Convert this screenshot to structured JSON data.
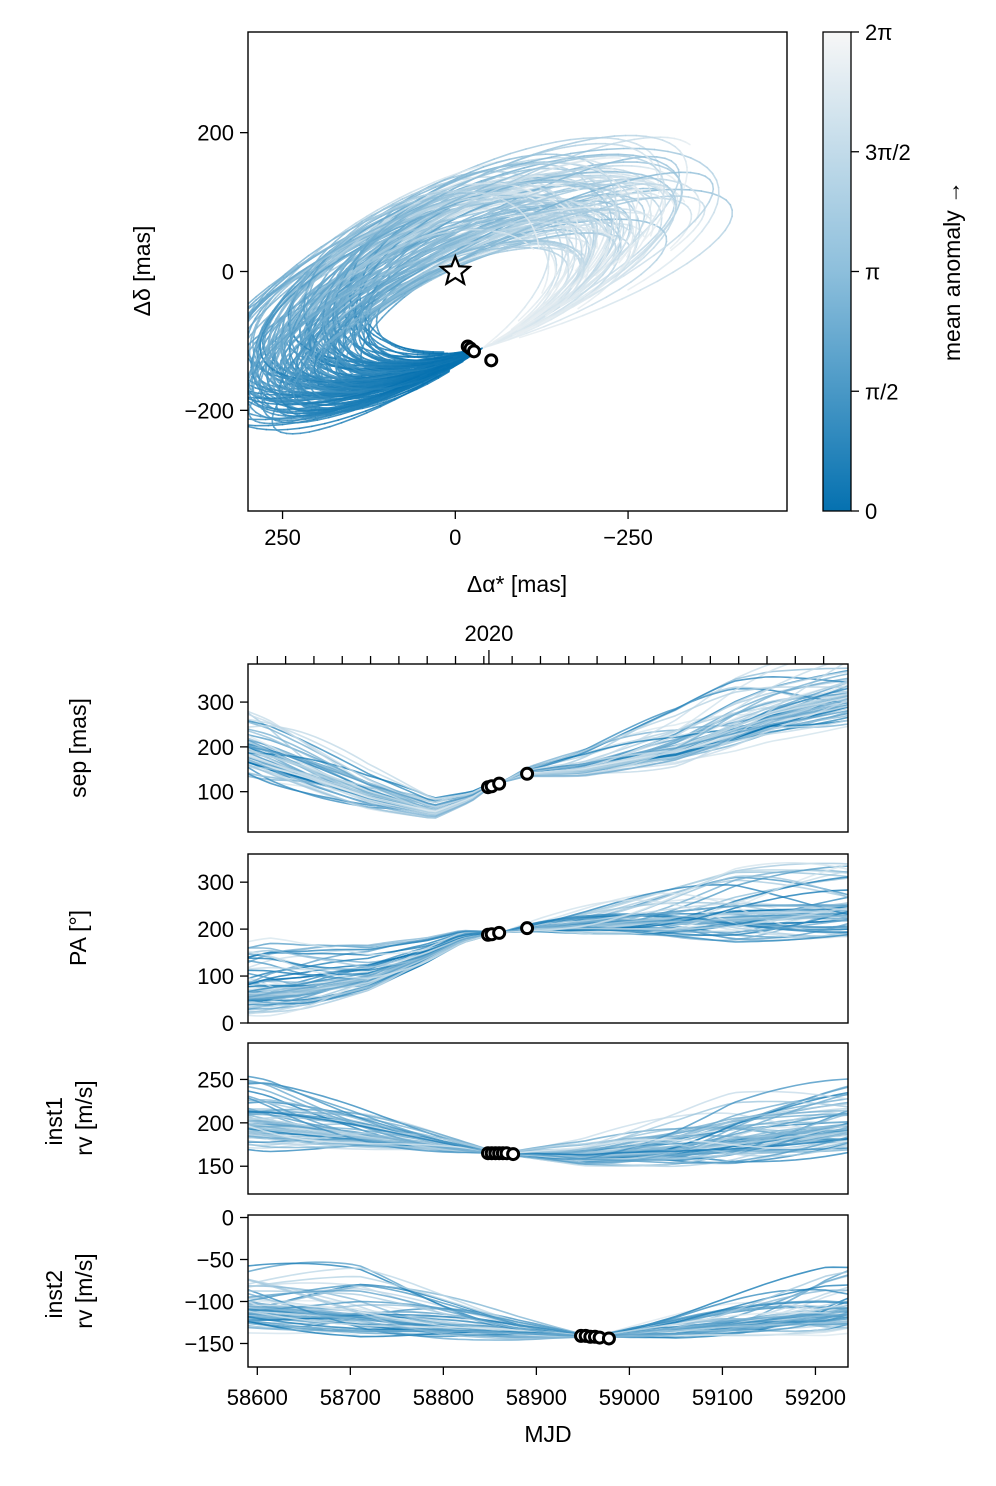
{
  "chart_data": [
    {
      "type": "scatter",
      "panel": "sky",
      "xlabel": "Δα* [mas]",
      "ylabel": "Δδ [mas]",
      "xlim": [
        300,
        -480
      ],
      "ylim": [
        -345,
        345
      ],
      "xticks": [
        250,
        0,
        -250
      ],
      "xtick_labels": [
        "250",
        "0",
        "−250"
      ],
      "yticks": [
        200,
        0,
        -200
      ],
      "ytick_labels": [
        "200",
        "0",
        "−200"
      ],
      "star": {
        "x": 0,
        "y": 0
      },
      "observations": [
        {
          "x": -18,
          "y": -108
        },
        {
          "x": -22,
          "y": -111
        },
        {
          "x": -27,
          "y": -115
        },
        {
          "x": -52,
          "y": -128
        }
      ],
      "colorbar": {
        "label": "mean anomaly →",
        "ticks": [
          "0",
          "π/2",
          "π",
          "3π/2",
          "2π"
        ],
        "colormap": [
          "#0571b0",
          "#f7f7f7"
        ]
      },
      "orbit_draws": 150,
      "orbit_params": {
        "center": [
          -130,
          0
        ],
        "semi_major": [
          165,
          335
        ],
        "semi_minor": [
          60,
          125
        ],
        "position_angle_deg": [
          -32,
          -18
        ],
        "anchor": {
          "x": -40,
          "y": -110
        }
      }
    },
    {
      "type": "line",
      "panel": "sep",
      "ylabel": "sep [mas]",
      "xlim": [
        58590,
        59235
      ],
      "ylim": [
        10,
        385
      ],
      "yticks": [
        100,
        200,
        300
      ],
      "ytick_labels": [
        "100",
        "200",
        "300"
      ],
      "top_axis_label": "2020",
      "top_axis_label_mjd": 58849,
      "observations": [
        {
          "x": 58848,
          "y": 110
        },
        {
          "x": 58852,
          "y": 112
        },
        {
          "x": 58860,
          "y": 118
        },
        {
          "x": 58890,
          "y": 140
        }
      ],
      "model_trend": [
        [
          58590,
          180
        ],
        [
          58650,
          140
        ],
        [
          58720,
          90
        ],
        [
          58790,
          55
        ],
        [
          58830,
          85
        ],
        [
          58850,
          112
        ],
        [
          58890,
          140
        ],
        [
          58950,
          150
        ],
        [
          59050,
          190
        ],
        [
          59150,
          260
        ],
        [
          59235,
          300
        ]
      ]
    },
    {
      "type": "line",
      "panel": "pa",
      "ylabel": "PA [°]",
      "xlim": [
        58590,
        59235
      ],
      "ylim": [
        0,
        360
      ],
      "yticks": [
        0,
        100,
        200,
        300
      ],
      "ytick_labels": [
        "0",
        "100",
        "200",
        "300"
      ],
      "observations": [
        {
          "x": 58848,
          "y": 188
        },
        {
          "x": 58852,
          "y": 189
        },
        {
          "x": 58860,
          "y": 192
        },
        {
          "x": 58890,
          "y": 202
        }
      ],
      "model_trend": [
        [
          58590,
          60
        ],
        [
          58650,
          70
        ],
        [
          58720,
          95
        ],
        [
          58780,
          140
        ],
        [
          58820,
          178
        ],
        [
          58850,
          190
        ],
        [
          58900,
          202
        ],
        [
          59000,
          212
        ],
        [
          59100,
          220
        ],
        [
          59235,
          232
        ]
      ]
    },
    {
      "type": "line",
      "panel": "rv1",
      "ylabel": "inst1\nrv [m/s]",
      "ylabel_lines": [
        "inst1",
        "rv [m/s]"
      ],
      "xlim": [
        58590,
        59235
      ],
      "ylim": [
        118,
        292
      ],
      "yticks": [
        150,
        200,
        250
      ],
      "ytick_labels": [
        "150",
        "200",
        "250"
      ],
      "observations": [
        {
          "x": 58848,
          "y": 165
        },
        {
          "x": 58852,
          "y": 165
        },
        {
          "x": 58856,
          "y": 165
        },
        {
          "x": 58860,
          "y": 165
        },
        {
          "x": 58864,
          "y": 165
        },
        {
          "x": 58868,
          "y": 165
        },
        {
          "x": 58875,
          "y": 164
        }
      ],
      "model_trend": [
        [
          58590,
          195
        ],
        [
          58700,
          185
        ],
        [
          58800,
          172
        ],
        [
          58870,
          164
        ],
        [
          58950,
          160
        ],
        [
          59050,
          168
        ],
        [
          59150,
          180
        ],
        [
          59235,
          190
        ]
      ]
    },
    {
      "type": "line",
      "panel": "rv2",
      "xlabel": "MJD",
      "ylabel": "inst2\nrv [m/s]",
      "ylabel_lines": [
        "inst2",
        "rv [m/s]"
      ],
      "xlim": [
        58590,
        59235
      ],
      "ylim": [
        -178,
        3
      ],
      "yticks": [
        0,
        -50,
        -100,
        -150
      ],
      "ytick_labels": [
        "0",
        "−50",
        "−100",
        "−150"
      ],
      "xticks": [
        58600,
        58700,
        58800,
        58900,
        59000,
        59100,
        59200
      ],
      "xtick_labels": [
        "58600",
        "58700",
        "58800",
        "58900",
        "59000",
        "59100",
        "59200"
      ],
      "observations": [
        {
          "x": 58948,
          "y": -141
        },
        {
          "x": 58953,
          "y": -141
        },
        {
          "x": 58958,
          "y": -142
        },
        {
          "x": 58963,
          "y": -142
        },
        {
          "x": 58968,
          "y": -143
        },
        {
          "x": 58978,
          "y": -144
        }
      ],
      "model_trend": [
        [
          58590,
          -110
        ],
        [
          58700,
          -118
        ],
        [
          58800,
          -130
        ],
        [
          58880,
          -138
        ],
        [
          58960,
          -142
        ],
        [
          59050,
          -135
        ],
        [
          59150,
          -122
        ],
        [
          59235,
          -112
        ]
      ]
    }
  ]
}
